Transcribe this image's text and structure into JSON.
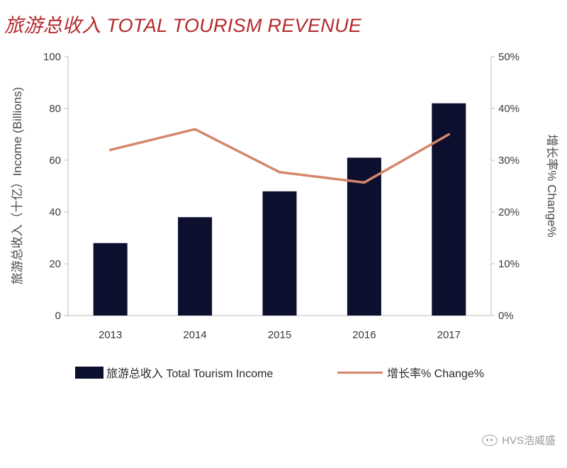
{
  "title": "旅游总收入 TOTAL TOURISM REVENUE",
  "watermark": "HVS浩威盛",
  "colors": {
    "bar": "#0d0f2e",
    "line": "#d4876a",
    "title": "#b5282c",
    "axis": "#bdbdbd"
  },
  "chart_data": {
    "type": "bar",
    "categories": [
      "2013",
      "2014",
      "2015",
      "2016",
      "2017"
    ],
    "series": [
      {
        "name": "旅游总收入 Total Tourism Income",
        "type": "bar",
        "axis": "left",
        "values": [
          28,
          38,
          48,
          61,
          82
        ]
      },
      {
        "name": "增长率% Change%",
        "type": "line",
        "axis": "right",
        "values": [
          32,
          36,
          27.7,
          25.7,
          35
        ]
      }
    ],
    "ylabel": "旅游总收入（十亿）Income (Billions)",
    "y2label": "增长率% Change%",
    "ylim": [
      0,
      100
    ],
    "y2lim": [
      0,
      50
    ],
    "yticks": [
      "0",
      "20",
      "40",
      "60",
      "80",
      "100"
    ],
    "y2ticks": [
      "0%",
      "10%",
      "20%",
      "30%",
      "40%",
      "50%"
    ],
    "grid": false,
    "legend_position": "bottom"
  }
}
